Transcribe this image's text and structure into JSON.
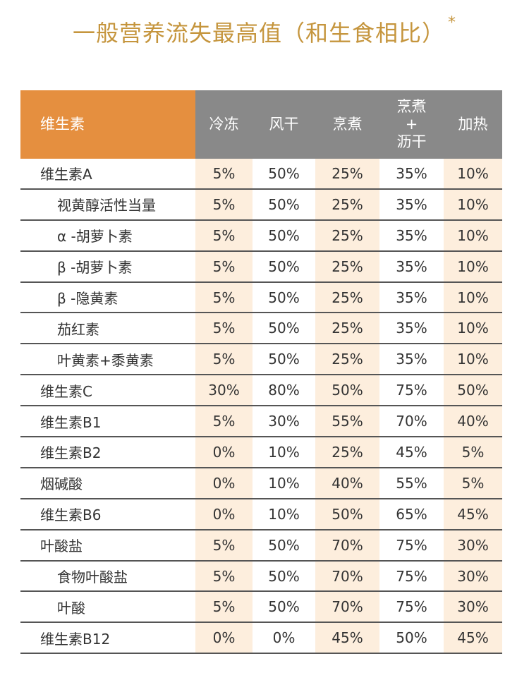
{
  "title": "一般营养流失最高值（和生食相比）",
  "title_mark": "*",
  "colors": {
    "title": "#c5953d",
    "header_accent": "#e58f3f",
    "header_gray": "#898989",
    "shade": "#fdeedd",
    "rule": "#555555"
  },
  "table": {
    "headers": {
      "nutrient": "维生素",
      "freeze": "冷冻",
      "dry": "风干",
      "cook": "烹煮",
      "cook_drain_top": "烹煮",
      "cook_drain_plus": "+",
      "cook_drain_bottom": "沥干",
      "reheat": "加热"
    },
    "rows": [
      {
        "name": "维生素A",
        "indent": false,
        "values": [
          "5%",
          "50%",
          "25%",
          "35%",
          "10%"
        ]
      },
      {
        "name": "视黄醇活性当量",
        "indent": true,
        "values": [
          "5%",
          "50%",
          "25%",
          "35%",
          "10%"
        ]
      },
      {
        "name": "α -胡萝卜素",
        "indent": true,
        "values": [
          "5%",
          "50%",
          "25%",
          "35%",
          "10%"
        ]
      },
      {
        "name": "β -胡萝卜素",
        "indent": true,
        "values": [
          "5%",
          "50%",
          "25%",
          "35%",
          "10%"
        ]
      },
      {
        "name": "β -隐黄素",
        "indent": true,
        "values": [
          "5%",
          "50%",
          "25%",
          "35%",
          "10%"
        ]
      },
      {
        "name": "茄红素",
        "indent": true,
        "values": [
          "5%",
          "50%",
          "25%",
          "35%",
          "10%"
        ]
      },
      {
        "name": "叶黄素+黍黄素",
        "indent": true,
        "values": [
          "5%",
          "50%",
          "25%",
          "35%",
          "10%"
        ]
      },
      {
        "name": "维生素C",
        "indent": false,
        "values": [
          "30%",
          "80%",
          "50%",
          "75%",
          "50%"
        ]
      },
      {
        "name": "维生素B1",
        "indent": false,
        "values": [
          "5%",
          "30%",
          "55%",
          "70%",
          "40%"
        ]
      },
      {
        "name": "维生素B2",
        "indent": false,
        "values": [
          "0%",
          "10%",
          "25%",
          "45%",
          "5%"
        ]
      },
      {
        "name": "烟碱酸",
        "indent": false,
        "values": [
          "0%",
          "10%",
          "40%",
          "55%",
          "5%"
        ]
      },
      {
        "name": "维生素B6",
        "indent": false,
        "values": [
          "0%",
          "10%",
          "50%",
          "65%",
          "45%"
        ]
      },
      {
        "name": "叶酸盐",
        "indent": false,
        "values": [
          "5%",
          "50%",
          "70%",
          "75%",
          "30%"
        ]
      },
      {
        "name": "食物叶酸盐",
        "indent": true,
        "values": [
          "5%",
          "50%",
          "70%",
          "75%",
          "30%"
        ]
      },
      {
        "name": "叶酸",
        "indent": true,
        "values": [
          "5%",
          "50%",
          "70%",
          "75%",
          "30%"
        ]
      },
      {
        "name": "维生素B12",
        "indent": false,
        "values": [
          "0%",
          "0%",
          "45%",
          "50%",
          "45%"
        ]
      }
    ]
  }
}
